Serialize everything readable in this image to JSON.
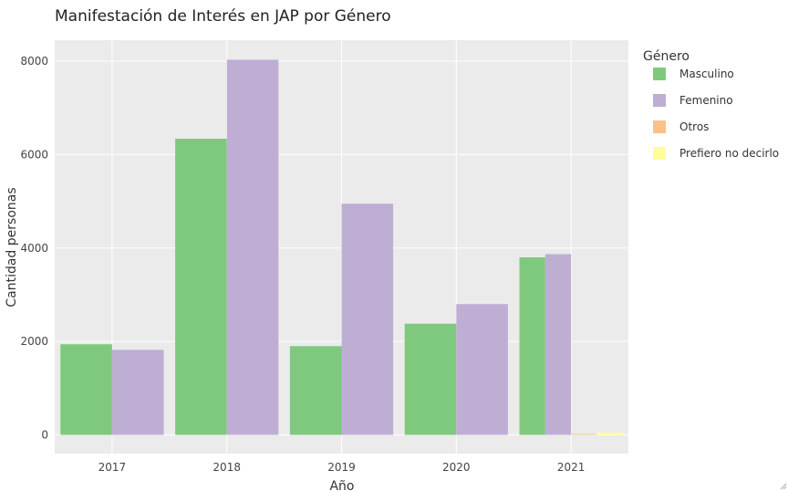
{
  "chart_data": {
    "type": "bar",
    "title": "Manifestación de Interés en JAP por Género",
    "xlabel": "Año",
    "ylabel": "Cantidad personas",
    "categories": [
      "2017",
      "2018",
      "2019",
      "2020",
      "2021"
    ],
    "ylim": [
      -400,
      8450
    ],
    "yticks": [
      0,
      2000,
      4000,
      6000,
      8000
    ],
    "legend_title": "Género",
    "legend_position": "right",
    "grid": true,
    "series": [
      {
        "name": "Masculino",
        "color": "#7fc97f",
        "values": [
          1940,
          6340,
          1900,
          2380,
          3800
        ]
      },
      {
        "name": "Femenino",
        "color": "#beaed4",
        "values": [
          1820,
          8030,
          4950,
          2800,
          3870
        ]
      },
      {
        "name": "Otros",
        "color": "#fdc086",
        "values": [
          null,
          null,
          null,
          null,
          20
        ]
      },
      {
        "name": "Prefiero no decirlo",
        "color": "#ffff99",
        "values": [
          null,
          null,
          null,
          null,
          50
        ]
      }
    ]
  }
}
